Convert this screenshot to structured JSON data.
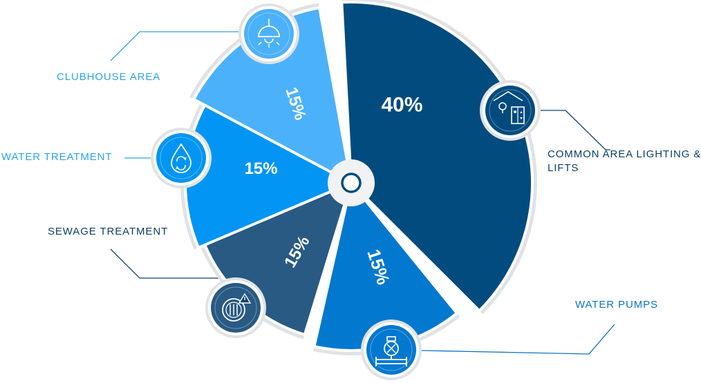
{
  "colors": {
    "outline": "#e0e2e5",
    "navy": "#024b7e",
    "royal": "#0378cf",
    "slate": "#285a83",
    "sky": "#0395f3",
    "light": "#4cb1fb",
    "label_light": "#2aa3ee",
    "label_dark": "#0c3f66",
    "label_mid": "#0a74c4"
  },
  "chart_data": {
    "type": "pie",
    "slices": [
      {
        "label": "COMMON AREA LIGHTING & LIFTS",
        "value": 40,
        "value_label": "40%",
        "color": "#024b7e",
        "icon": "elevator-lightbulb-icon"
      },
      {
        "label": "WATER PUMPS",
        "value": 15,
        "value_label": "15%",
        "color": "#0378cf",
        "icon": "water-pump-icon"
      },
      {
        "label": "SEWAGE TREATMENT",
        "value": 15,
        "value_label": "15%",
        "color": "#285a83",
        "icon": "sewage-tank-warning-icon"
      },
      {
        "label": "WATER TREATMENT",
        "value": 15,
        "value_label": "15%",
        "color": "#0395f3",
        "icon": "water-drop-recycle-icon"
      },
      {
        "label": "CLUBHOUSE AREA",
        "value": 15,
        "value_label": "15%",
        "color": "#4cb1fb",
        "icon": "ceiling-lamp-icon"
      }
    ]
  }
}
